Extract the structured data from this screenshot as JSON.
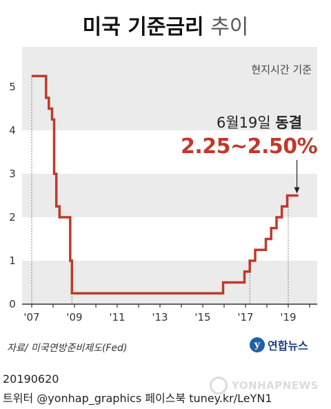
{
  "header": {
    "title_bold": "미국 기준금리",
    "title_light": "추이"
  },
  "note": "현지시간 기준",
  "annotation": {
    "date_prefix": "6월19일",
    "status": "동결",
    "range": "2.25~2.50%"
  },
  "colors": {
    "line": "#c0392b",
    "band": "#ebebeb",
    "logo": "#1f5fa8"
  },
  "chart_data": {
    "type": "line",
    "title": "미국 기준금리 추이",
    "xlim": [
      2007,
      2020.8
    ],
    "ylim": [
      0,
      5.5
    ],
    "yticks": [
      0,
      1,
      2,
      3,
      4,
      5
    ],
    "xticks": [
      2007,
      2009,
      2011,
      2013,
      2015,
      2017,
      2019
    ],
    "xtick_labels": [
      "'07",
      "'09",
      "'11",
      "'13",
      "'15",
      "'17",
      "'19"
    ],
    "grid": "horizontal bands",
    "series": [
      {
        "values": [
          [
            2007.0,
            5.25
          ],
          [
            2007.67,
            5.25
          ],
          [
            2007.67,
            4.75
          ],
          [
            2007.8,
            4.75
          ],
          [
            2007.8,
            4.5
          ],
          [
            2007.95,
            4.5
          ],
          [
            2007.95,
            4.25
          ],
          [
            2008.05,
            4.25
          ],
          [
            2008.05,
            3.0
          ],
          [
            2008.15,
            3.0
          ],
          [
            2008.15,
            2.25
          ],
          [
            2008.3,
            2.25
          ],
          [
            2008.3,
            2.0
          ],
          [
            2008.8,
            2.0
          ],
          [
            2008.8,
            1.0
          ],
          [
            2008.88,
            1.0
          ],
          [
            2008.88,
            0.25
          ],
          [
            2015.95,
            0.25
          ],
          [
            2015.95,
            0.5
          ],
          [
            2016.95,
            0.5
          ],
          [
            2016.95,
            0.75
          ],
          [
            2017.2,
            0.75
          ],
          [
            2017.2,
            1.0
          ],
          [
            2017.45,
            1.0
          ],
          [
            2017.45,
            1.25
          ],
          [
            2017.95,
            1.25
          ],
          [
            2017.95,
            1.5
          ],
          [
            2018.2,
            1.5
          ],
          [
            2018.2,
            1.75
          ],
          [
            2018.45,
            1.75
          ],
          [
            2018.45,
            2.0
          ],
          [
            2018.7,
            2.0
          ],
          [
            2018.7,
            2.25
          ],
          [
            2018.95,
            2.25
          ],
          [
            2018.95,
            2.5
          ],
          [
            2019.47,
            2.5
          ]
        ]
      }
    ]
  },
  "source": "자료/ 미국연방준비제도(Fed)",
  "logo": {
    "mark": "y",
    "text": "연합뉴스"
  },
  "footer": {
    "date": "20190620",
    "social": "트위터 @yonhap_graphics  페이스북 tuney.kr/LeYN1"
  },
  "watermark": "YONHAPNEWS"
}
